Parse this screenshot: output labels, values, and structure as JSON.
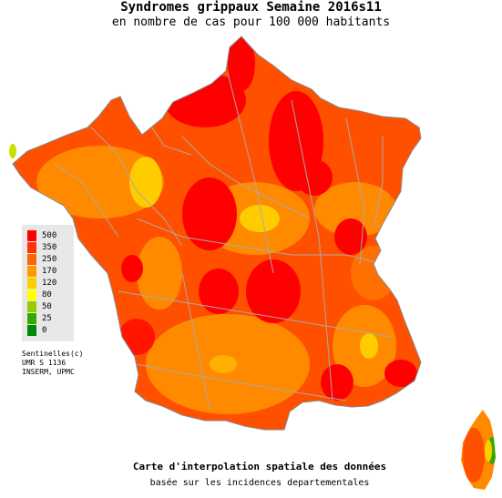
{
  "header": {
    "title": "Syndromes grippaux Semaine 2016s11",
    "subtitle": "en nombre de cas pour 100 000 habitants"
  },
  "legend": {
    "items": [
      {
        "label": "500",
        "color": "#ff0000"
      },
      {
        "label": "350",
        "color": "#ff3300"
      },
      {
        "label": "250",
        "color": "#ff6600"
      },
      {
        "label": "170",
        "color": "#ff9900"
      },
      {
        "label": "120",
        "color": "#ffcc00"
      },
      {
        "label": "80",
        "color": "#ffff00"
      },
      {
        "label": "50",
        "color": "#99cc00"
      },
      {
        "label": "25",
        "color": "#33aa00"
      },
      {
        "label": "0",
        "color": "#008800"
      }
    ]
  },
  "credits": {
    "line1": "Sentinelles(c)",
    "line2": "UMR S 1136",
    "line3": "INSERM, UPMC"
  },
  "footer": {
    "line1": "Carte d'interpolation spatiale des données",
    "line2": "basée sur les incidences departementales"
  },
  "colors": {
    "mainland_base": "#ff5000",
    "high": "#ff0000",
    "mid": "#ff8a00",
    "low": "#ffcc00",
    "borders": "#aaaaaa"
  }
}
